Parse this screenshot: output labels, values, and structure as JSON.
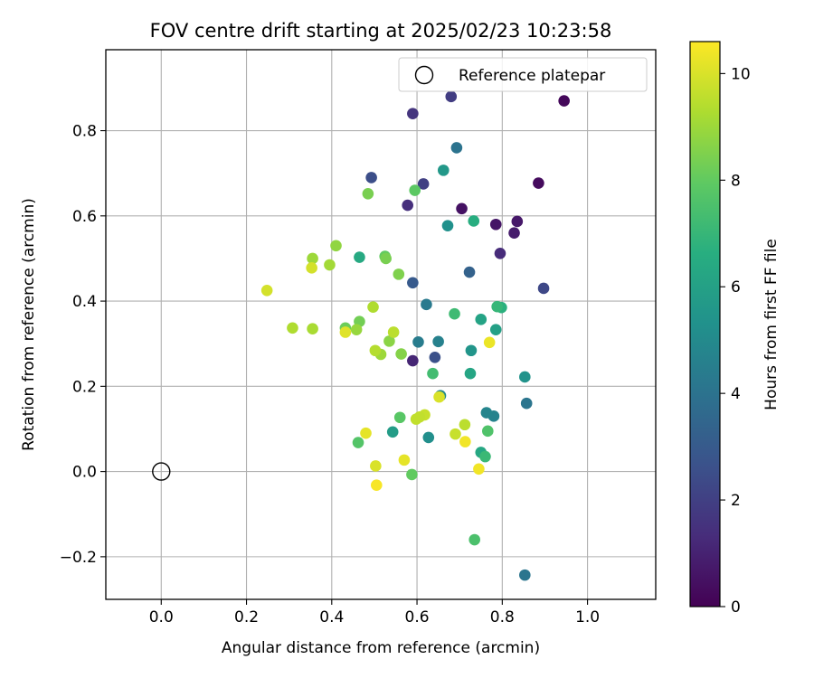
{
  "chart_data": {
    "type": "scatter",
    "title": "FOV centre drift starting at 2025/02/23 10:23:58",
    "xlabel": "Angular distance from reference (arcmin)",
    "ylabel": "Rotation from reference (arcmin)",
    "xlim": [
      -0.13,
      1.16
    ],
    "ylim": [
      -0.3,
      0.99
    ],
    "xticks": [
      0.0,
      0.2,
      0.4,
      0.6,
      0.8,
      1.0
    ],
    "xtick_labels": [
      "0.0",
      "0.2",
      "0.4",
      "0.6",
      "0.8",
      "1.0"
    ],
    "yticks": [
      -0.2,
      0.0,
      0.2,
      0.4,
      0.6,
      0.8
    ],
    "ytick_labels": [
      "−0.2",
      "0.0",
      "0.2",
      "0.4",
      "0.6",
      "0.8"
    ],
    "grid": true,
    "legend": {
      "position": "top-right",
      "label": "Reference platepar"
    },
    "reference_point": {
      "x": 0.0,
      "y": 0.0
    },
    "colorbar": {
      "label": "Hours from first FF file",
      "min": 0,
      "max": 10.6,
      "colormap": "viridis",
      "ticks": [
        0,
        2,
        4,
        6,
        8,
        10
      ],
      "tick_labels": [
        "0",
        "2",
        "4",
        "6",
        "8",
        "10"
      ]
    },
    "points": [
      {
        "x": 0.945,
        "y": 0.87,
        "c": 0.2
      },
      {
        "x": 0.885,
        "y": 0.677,
        "c": 0.3
      },
      {
        "x": 0.705,
        "y": 0.617,
        "c": 0.5
      },
      {
        "x": 0.785,
        "y": 0.58,
        "c": 0.6
      },
      {
        "x": 0.835,
        "y": 0.587,
        "c": 0.7
      },
      {
        "x": 0.828,
        "y": 0.56,
        "c": 0.8
      },
      {
        "x": 0.795,
        "y": 0.512,
        "c": 1.3
      },
      {
        "x": 0.59,
        "y": 0.26,
        "c": 1.1
      },
      {
        "x": 0.578,
        "y": 0.625,
        "c": 1.4
      },
      {
        "x": 0.59,
        "y": 0.84,
        "c": 1.6
      },
      {
        "x": 0.68,
        "y": 0.88,
        "c": 1.9
      },
      {
        "x": 0.615,
        "y": 0.675,
        "c": 2.0
      },
      {
        "x": 0.897,
        "y": 0.43,
        "c": 2.3
      },
      {
        "x": 0.493,
        "y": 0.69,
        "c": 2.5
      },
      {
        "x": 0.642,
        "y": 0.268,
        "c": 2.6
      },
      {
        "x": 0.59,
        "y": 0.443,
        "c": 3.0
      },
      {
        "x": 0.723,
        "y": 0.468,
        "c": 3.3
      },
      {
        "x": 0.693,
        "y": 0.76,
        "c": 4.0
      },
      {
        "x": 0.857,
        "y": 0.16,
        "c": 4.1
      },
      {
        "x": 0.853,
        "y": -0.243,
        "c": 4.1
      },
      {
        "x": 0.622,
        "y": 0.392,
        "c": 4.3
      },
      {
        "x": 0.603,
        "y": 0.304,
        "c": 4.4
      },
      {
        "x": 0.65,
        "y": 0.305,
        "c": 4.6
      },
      {
        "x": 0.78,
        "y": 0.13,
        "c": 4.7
      },
      {
        "x": 0.763,
        "y": 0.138,
        "c": 4.8
      },
      {
        "x": 0.655,
        "y": 0.178,
        "c": 5.0
      },
      {
        "x": 0.627,
        "y": 0.08,
        "c": 5.2
      },
      {
        "x": 0.672,
        "y": 0.577,
        "c": 5.3
      },
      {
        "x": 0.853,
        "y": 0.222,
        "c": 5.4
      },
      {
        "x": 0.727,
        "y": 0.284,
        "c": 5.5
      },
      {
        "x": 0.662,
        "y": 0.707,
        "c": 5.6
      },
      {
        "x": 0.543,
        "y": 0.093,
        "c": 5.8
      },
      {
        "x": 0.785,
        "y": 0.333,
        "c": 6.0
      },
      {
        "x": 0.75,
        "y": 0.357,
        "c": 6.1
      },
      {
        "x": 0.725,
        "y": 0.23,
        "c": 6.2
      },
      {
        "x": 0.75,
        "y": 0.045,
        "c": 6.3
      },
      {
        "x": 0.465,
        "y": 0.503,
        "c": 6.4
      },
      {
        "x": 0.733,
        "y": 0.588,
        "c": 6.6
      },
      {
        "x": 0.798,
        "y": 0.385,
        "c": 6.7
      },
      {
        "x": 0.788,
        "y": 0.387,
        "c": 7.0
      },
      {
        "x": 0.76,
        "y": 0.035,
        "c": 7.1
      },
      {
        "x": 0.688,
        "y": 0.37,
        "c": 7.2
      },
      {
        "x": 0.637,
        "y": 0.23,
        "c": 7.3
      },
      {
        "x": 0.735,
        "y": -0.16,
        "c": 7.5
      },
      {
        "x": 0.766,
        "y": 0.095,
        "c": 7.6
      },
      {
        "x": 0.462,
        "y": 0.068,
        "c": 7.7
      },
      {
        "x": 0.56,
        "y": 0.127,
        "c": 7.8
      },
      {
        "x": 0.595,
        "y": 0.66,
        "c": 7.9
      },
      {
        "x": 0.588,
        "y": -0.007,
        "c": 8.0
      },
      {
        "x": 0.525,
        "y": 0.505,
        "c": 8.0
      },
      {
        "x": 0.432,
        "y": 0.337,
        "c": 8.2
      },
      {
        "x": 0.465,
        "y": 0.352,
        "c": 8.3
      },
      {
        "x": 0.485,
        "y": 0.652,
        "c": 8.4
      },
      {
        "x": 0.527,
        "y": 0.5,
        "c": 8.4
      },
      {
        "x": 0.557,
        "y": 0.463,
        "c": 8.5
      },
      {
        "x": 0.563,
        "y": 0.276,
        "c": 8.6
      },
      {
        "x": 0.535,
        "y": 0.306,
        "c": 8.7
      },
      {
        "x": 0.41,
        "y": 0.53,
        "c": 8.8
      },
      {
        "x": 0.458,
        "y": 0.333,
        "c": 8.9
      },
      {
        "x": 0.515,
        "y": 0.275,
        "c": 9.0
      },
      {
        "x": 0.355,
        "y": 0.5,
        "c": 9.0
      },
      {
        "x": 0.395,
        "y": 0.485,
        "c": 9.1
      },
      {
        "x": 0.355,
        "y": 0.335,
        "c": 9.2
      },
      {
        "x": 0.308,
        "y": 0.337,
        "c": 9.3
      },
      {
        "x": 0.497,
        "y": 0.386,
        "c": 9.3
      },
      {
        "x": 0.502,
        "y": 0.284,
        "c": 9.4
      },
      {
        "x": 0.545,
        "y": 0.327,
        "c": 9.5
      },
      {
        "x": 0.598,
        "y": 0.123,
        "c": 9.6
      },
      {
        "x": 0.618,
        "y": 0.133,
        "c": 9.7
      },
      {
        "x": 0.606,
        "y": 0.128,
        "c": 9.6
      },
      {
        "x": 0.69,
        "y": 0.088,
        "c": 9.7
      },
      {
        "x": 0.712,
        "y": 0.11,
        "c": 9.5
      },
      {
        "x": 0.353,
        "y": 0.478,
        "c": 9.9
      },
      {
        "x": 0.248,
        "y": 0.425,
        "c": 9.9
      },
      {
        "x": 0.503,
        "y": 0.013,
        "c": 10.0
      },
      {
        "x": 0.652,
        "y": 0.175,
        "c": 10.0
      },
      {
        "x": 0.432,
        "y": 0.327,
        "c": 10.1
      },
      {
        "x": 0.48,
        "y": 0.09,
        "c": 10.2
      },
      {
        "x": 0.57,
        "y": 0.027,
        "c": 10.2
      },
      {
        "x": 0.77,
        "y": 0.303,
        "c": 10.3
      },
      {
        "x": 0.745,
        "y": 0.006,
        "c": 10.4
      },
      {
        "x": 0.713,
        "y": 0.07,
        "c": 10.4
      },
      {
        "x": 0.505,
        "y": -0.032,
        "c": 10.5
      }
    ]
  }
}
